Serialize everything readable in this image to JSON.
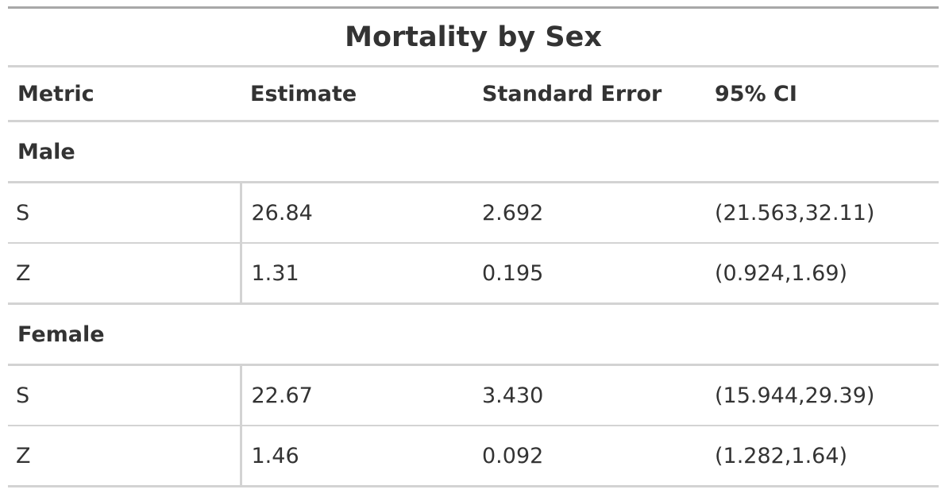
{
  "title": "Mortality by Sex",
  "columns": [
    "Metric",
    "Estimate",
    "Standard Error",
    "95% CI"
  ],
  "groups": [
    {
      "label": "Male",
      "rows": [
        [
          "S",
          "26.84",
          "2.692",
          "(21.563,32.11)"
        ],
        [
          "Z",
          "1.31",
          "0.195",
          "(0.924,1.69)"
        ]
      ]
    },
    {
      "label": "Female",
      "rows": [
        [
          "S",
          "22.67",
          "3.430",
          "(15.944,29.39)"
        ],
        [
          "Z",
          "1.46",
          "0.092",
          "(1.282,1.64)"
        ]
      ]
    }
  ]
}
